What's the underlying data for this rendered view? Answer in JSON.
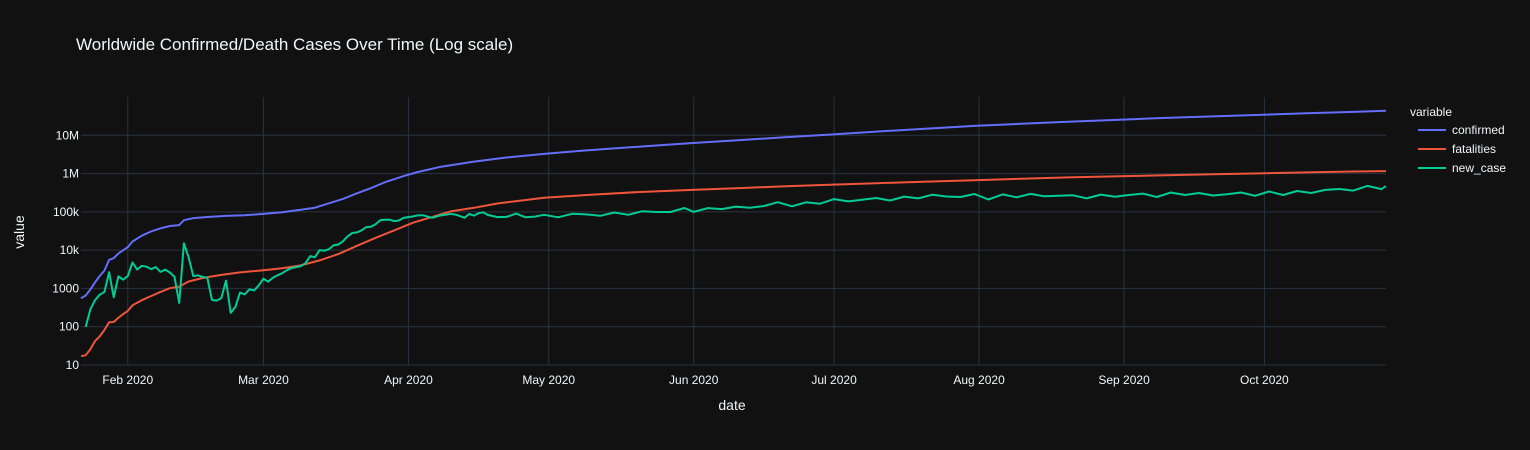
{
  "chart_data": {
    "type": "line",
    "title": "Worldwide Confirmed/Death Cases Over Time (Log scale)",
    "xlabel": "date",
    "ylabel": "value",
    "x_tick_labels": [
      "Feb 2020",
      "Mar 2020",
      "Apr 2020",
      "May 2020",
      "Jun 2020",
      "Jul 2020",
      "Aug 2020",
      "Sep 2020",
      "Oct 2020"
    ],
    "x_tick_dates": [
      "2020-02-01",
      "2020-03-01",
      "2020-04-01",
      "2020-05-01",
      "2020-06-01",
      "2020-07-01",
      "2020-08-01",
      "2020-09-01",
      "2020-10-01"
    ],
    "y_scale": "log",
    "y_tick_labels": [
      "10",
      "100",
      "1000",
      "10k",
      "100k",
      "1M",
      "10M"
    ],
    "y_tick_values": [
      10,
      100,
      1000,
      10000,
      100000,
      1000000,
      10000000
    ],
    "xlim": [
      "2020-01-22",
      "2020-10-27"
    ],
    "ylim": [
      10,
      100000000
    ],
    "grid": true,
    "legend": {
      "title": "variable",
      "placement": "right"
    },
    "colors": {
      "background": "#111111",
      "grid": "#283442",
      "text": "#f2f5fa"
    },
    "series": [
      {
        "name": "confirmed",
        "color": "#636efa",
        "points": [
          [
            "2020-01-22",
            555
          ],
          [
            "2020-01-23",
            654
          ],
          [
            "2020-01-24",
            941
          ],
          [
            "2020-01-25",
            1434
          ],
          [
            "2020-01-26",
            2118
          ],
          [
            "2020-01-27",
            2927
          ],
          [
            "2020-01-28",
            5578
          ],
          [
            "2020-01-29",
            6166
          ],
          [
            "2020-01-30",
            8234
          ],
          [
            "2020-01-31",
            9927
          ],
          [
            "2020-02-01",
            12038
          ],
          [
            "2020-02-02",
            16787
          ],
          [
            "2020-02-04",
            23892
          ],
          [
            "2020-02-06",
            30818
          ],
          [
            "2020-02-08",
            37120
          ],
          [
            "2020-02-10",
            42763
          ],
          [
            "2020-02-12",
            45221
          ],
          [
            "2020-02-13",
            60368
          ],
          [
            "2020-02-15",
            68800
          ],
          [
            "2020-02-18",
            73332
          ],
          [
            "2020-02-22",
            78599
          ],
          [
            "2020-02-26",
            81397
          ],
          [
            "2020-03-01",
            88369
          ],
          [
            "2020-03-05",
            97886
          ],
          [
            "2020-03-09",
            113561
          ],
          [
            "2020-03-12",
            128343
          ],
          [
            "2020-03-15",
            167422
          ],
          [
            "2020-03-18",
            218000
          ],
          [
            "2020-03-21",
            305000
          ],
          [
            "2020-03-24",
            418000
          ],
          [
            "2020-03-27",
            595000
          ],
          [
            "2020-03-31",
            857000
          ],
          [
            "2020-04-03",
            1096000
          ],
          [
            "2020-04-08",
            1511000
          ],
          [
            "2020-04-15",
            2056000
          ],
          [
            "2020-04-22",
            2622000
          ],
          [
            "2020-04-30",
            3272000
          ],
          [
            "2020-05-08",
            3950000
          ],
          [
            "2020-05-15",
            4542000
          ],
          [
            "2020-05-22",
            5204000
          ],
          [
            "2020-05-31",
            6186000
          ],
          [
            "2020-06-10",
            7350000
          ],
          [
            "2020-06-20",
            8810000
          ],
          [
            "2020-06-30",
            10450000
          ],
          [
            "2020-07-10",
            12500000
          ],
          [
            "2020-07-20",
            14700000
          ],
          [
            "2020-07-31",
            17600000
          ],
          [
            "2020-08-10",
            20000000
          ],
          [
            "2020-08-20",
            22500000
          ],
          [
            "2020-08-31",
            25500000
          ],
          [
            "2020-09-10",
            28400000
          ],
          [
            "2020-09-20",
            31200000
          ],
          [
            "2020-09-30",
            34000000
          ],
          [
            "2020-10-10",
            37500000
          ],
          [
            "2020-10-20",
            40900000
          ],
          [
            "2020-10-27",
            43500000
          ]
        ]
      },
      {
        "name": "fatalities",
        "color": "#EF553B",
        "points": [
          [
            "2020-01-22",
            17
          ],
          [
            "2020-01-23",
            18
          ],
          [
            "2020-01-24",
            26
          ],
          [
            "2020-01-25",
            42
          ],
          [
            "2020-01-26",
            56
          ],
          [
            "2020-01-27",
            82
          ],
          [
            "2020-01-28",
            131
          ],
          [
            "2020-01-29",
            133
          ],
          [
            "2020-01-30",
            171
          ],
          [
            "2020-01-31",
            213
          ],
          [
            "2020-02-01",
            259
          ],
          [
            "2020-02-02",
            362
          ],
          [
            "2020-02-04",
            492
          ],
          [
            "2020-02-06",
            634
          ],
          [
            "2020-02-08",
            813
          ],
          [
            "2020-02-10",
            1013
          ],
          [
            "2020-02-12",
            1118
          ],
          [
            "2020-02-14",
            1520
          ],
          [
            "2020-02-17",
            1872
          ],
          [
            "2020-02-21",
            2251
          ],
          [
            "2020-02-25",
            2629
          ],
          [
            "2020-03-01",
            2994
          ],
          [
            "2020-03-05",
            3348
          ],
          [
            "2020-03-09",
            3988
          ],
          [
            "2020-03-13",
            5400
          ],
          [
            "2020-03-17",
            7900
          ],
          [
            "2020-03-21",
            13000
          ],
          [
            "2020-03-25",
            21000
          ],
          [
            "2020-03-29",
            33000
          ],
          [
            "2020-04-02",
            52000
          ],
          [
            "2020-04-06",
            73000
          ],
          [
            "2020-04-10",
            103000
          ],
          [
            "2020-04-15",
            128000
          ],
          [
            "2020-04-20",
            165000
          ],
          [
            "2020-04-25",
            197000
          ],
          [
            "2020-04-30",
            234000
          ],
          [
            "2020-05-10",
            280000
          ],
          [
            "2020-05-20",
            328000
          ],
          [
            "2020-05-31",
            372000
          ],
          [
            "2020-06-10",
            415000
          ],
          [
            "2020-06-20",
            462000
          ],
          [
            "2020-06-30",
            512000
          ],
          [
            "2020-07-10",
            562000
          ],
          [
            "2020-07-20",
            610000
          ],
          [
            "2020-07-31",
            670000
          ],
          [
            "2020-08-10",
            735000
          ],
          [
            "2020-08-20",
            795000
          ],
          [
            "2020-08-31",
            850000
          ],
          [
            "2020-09-10",
            905000
          ],
          [
            "2020-09-20",
            960000
          ],
          [
            "2020-09-30",
            1010000
          ],
          [
            "2020-10-10",
            1070000
          ],
          [
            "2020-10-20",
            1130000
          ],
          [
            "2020-10-27",
            1160000
          ]
        ]
      },
      {
        "name": "new_case",
        "color": "#00cc96",
        "points": [
          [
            "2020-01-23",
            99
          ],
          [
            "2020-01-24",
            287
          ],
          [
            "2020-01-25",
            493
          ],
          [
            "2020-01-26",
            684
          ],
          [
            "2020-01-27",
            809
          ],
          [
            "2020-01-28",
            2651
          ],
          [
            "2020-01-29",
            588
          ],
          [
            "2020-01-30",
            2068
          ],
          [
            "2020-01-31",
            1693
          ],
          [
            "2020-02-01",
            2111
          ],
          [
            "2020-02-02",
            4749
          ],
          [
            "2020-02-03",
            3100
          ],
          [
            "2020-02-04",
            3900
          ],
          [
            "2020-02-05",
            3700
          ],
          [
            "2020-02-06",
            3200
          ],
          [
            "2020-02-07",
            3600
          ],
          [
            "2020-02-08",
            2700
          ],
          [
            "2020-02-09",
            3100
          ],
          [
            "2020-02-10",
            2600
          ],
          [
            "2020-02-11",
            2000
          ],
          [
            "2020-02-12",
            420
          ],
          [
            "2020-02-13",
            15100
          ],
          [
            "2020-02-14",
            6500
          ],
          [
            "2020-02-15",
            2100
          ],
          [
            "2020-02-16",
            2200
          ],
          [
            "2020-02-17",
            2000
          ],
          [
            "2020-02-18",
            1900
          ],
          [
            "2020-02-19",
            500
          ],
          [
            "2020-02-20",
            480
          ],
          [
            "2020-02-21",
            560
          ],
          [
            "2020-02-22",
            1600
          ],
          [
            "2020-02-23",
            230
          ],
          [
            "2020-02-24",
            330
          ],
          [
            "2020-02-25",
            780
          ],
          [
            "2020-02-26",
            700
          ],
          [
            "2020-02-27",
            950
          ],
          [
            "2020-02-28",
            890
          ],
          [
            "2020-02-29",
            1200
          ],
          [
            "2020-03-01",
            1800
          ],
          [
            "2020-03-02",
            1500
          ],
          [
            "2020-03-03",
            1900
          ],
          [
            "2020-03-04",
            2200
          ],
          [
            "2020-03-05",
            2500
          ],
          [
            "2020-03-06",
            3000
          ],
          [
            "2020-03-07",
            3400
          ],
          [
            "2020-03-08",
            3600
          ],
          [
            "2020-03-09",
            3800
          ],
          [
            "2020-03-10",
            4600
          ],
          [
            "2020-03-11",
            7000
          ],
          [
            "2020-03-12",
            6500
          ],
          [
            "2020-03-13",
            10000
          ],
          [
            "2020-03-14",
            9700
          ],
          [
            "2020-03-15",
            10500
          ],
          [
            "2020-03-16",
            13500
          ],
          [
            "2020-03-17",
            14000
          ],
          [
            "2020-03-18",
            17000
          ],
          [
            "2020-03-19",
            23000
          ],
          [
            "2020-03-20",
            28000
          ],
          [
            "2020-03-21",
            29000
          ],
          [
            "2020-03-22",
            33000
          ],
          [
            "2020-03-23",
            40000
          ],
          [
            "2020-03-24",
            41000
          ],
          [
            "2020-03-25",
            48000
          ],
          [
            "2020-03-26",
            61000
          ],
          [
            "2020-03-27",
            62000
          ],
          [
            "2020-03-28",
            62500
          ],
          [
            "2020-03-29",
            57000
          ],
          [
            "2020-03-30",
            60000
          ],
          [
            "2020-03-31",
            70000
          ],
          [
            "2020-04-01",
            73000
          ],
          [
            "2020-04-02",
            76000
          ],
          [
            "2020-04-03",
            81000
          ],
          [
            "2020-04-04",
            82000
          ],
          [
            "2020-04-05",
            76000
          ],
          [
            "2020-04-06",
            70000
          ],
          [
            "2020-04-07",
            75000
          ],
          [
            "2020-04-08",
            82000
          ],
          [
            "2020-04-09",
            84000
          ],
          [
            "2020-04-10",
            89000
          ],
          [
            "2020-04-11",
            85000
          ],
          [
            "2020-04-12",
            78000
          ],
          [
            "2020-04-13",
            70000
          ],
          [
            "2020-04-14",
            88000
          ],
          [
            "2020-04-15",
            80000
          ],
          [
            "2020-04-16",
            92000
          ],
          [
            "2020-04-17",
            97000
          ],
          [
            "2020-04-18",
            83000
          ],
          [
            "2020-04-19",
            78000
          ],
          [
            "2020-04-20",
            73000
          ],
          [
            "2020-04-22",
            74000
          ],
          [
            "2020-04-24",
            90000
          ],
          [
            "2020-04-26",
            72000
          ],
          [
            "2020-04-28",
            75000
          ],
          [
            "2020-04-30",
            84000
          ],
          [
            "2020-05-03",
            72000
          ],
          [
            "2020-05-06",
            89000
          ],
          [
            "2020-05-09",
            86000
          ],
          [
            "2020-05-12",
            79000
          ],
          [
            "2020-05-15",
            96000
          ],
          [
            "2020-05-18",
            84000
          ],
          [
            "2020-05-21",
            104000
          ],
          [
            "2020-05-24",
            99000
          ],
          [
            "2020-05-27",
            99000
          ],
          [
            "2020-05-30",
            126000
          ],
          [
            "2020-06-01",
            100000
          ],
          [
            "2020-06-04",
            125000
          ],
          [
            "2020-06-07",
            118000
          ],
          [
            "2020-06-10",
            137000
          ],
          [
            "2020-06-13",
            128000
          ],
          [
            "2020-06-16",
            142000
          ],
          [
            "2020-06-19",
            179000
          ],
          [
            "2020-06-22",
            140000
          ],
          [
            "2020-06-25",
            178000
          ],
          [
            "2020-06-28",
            163000
          ],
          [
            "2020-07-01",
            215000
          ],
          [
            "2020-07-04",
            187000
          ],
          [
            "2020-07-07",
            207000
          ],
          [
            "2020-07-10",
            230000
          ],
          [
            "2020-07-13",
            198000
          ],
          [
            "2020-07-16",
            250000
          ],
          [
            "2020-07-19",
            225000
          ],
          [
            "2020-07-22",
            280000
          ],
          [
            "2020-07-25",
            252000
          ],
          [
            "2020-07-28",
            245000
          ],
          [
            "2020-07-31",
            292000
          ],
          [
            "2020-08-03",
            210000
          ],
          [
            "2020-08-06",
            285000
          ],
          [
            "2020-08-09",
            240000
          ],
          [
            "2020-08-12",
            295000
          ],
          [
            "2020-08-15",
            255000
          ],
          [
            "2020-08-18",
            265000
          ],
          [
            "2020-08-21",
            272000
          ],
          [
            "2020-08-24",
            225000
          ],
          [
            "2020-08-27",
            282000
          ],
          [
            "2020-08-30",
            248000
          ],
          [
            "2020-09-02",
            275000
          ],
          [
            "2020-09-05",
            300000
          ],
          [
            "2020-09-08",
            245000
          ],
          [
            "2020-09-11",
            320000
          ],
          [
            "2020-09-14",
            275000
          ],
          [
            "2020-09-17",
            310000
          ],
          [
            "2020-09-20",
            268000
          ],
          [
            "2020-09-23",
            290000
          ],
          [
            "2020-09-26",
            320000
          ],
          [
            "2020-09-29",
            262000
          ],
          [
            "2020-10-02",
            340000
          ],
          [
            "2020-10-05",
            275000
          ],
          [
            "2020-10-08",
            350000
          ],
          [
            "2020-10-11",
            310000
          ],
          [
            "2020-10-14",
            375000
          ],
          [
            "2020-10-17",
            395000
          ],
          [
            "2020-10-20",
            360000
          ],
          [
            "2020-10-23",
            475000
          ],
          [
            "2020-10-25",
            420000
          ],
          [
            "2020-10-26",
            390000
          ],
          [
            "2020-10-27",
            470000
          ]
        ]
      }
    ]
  }
}
